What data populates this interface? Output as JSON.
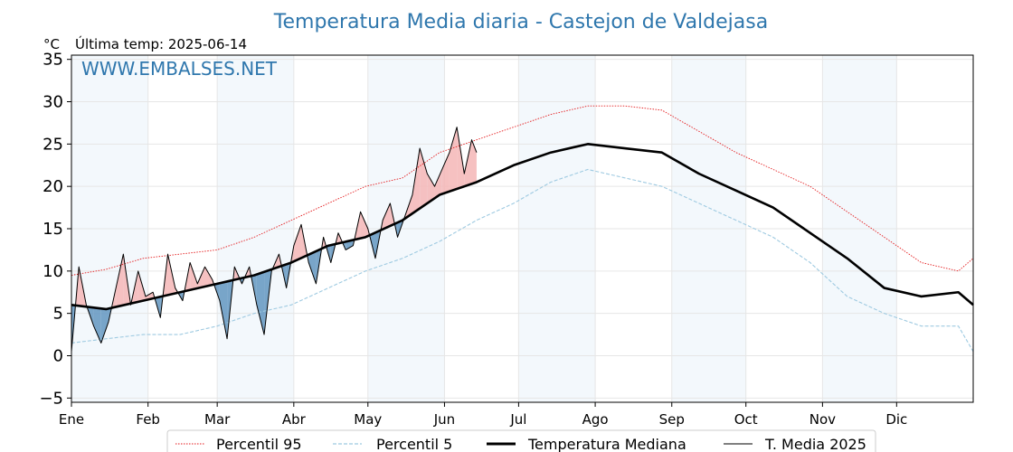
{
  "chart_data": {
    "type": "line",
    "title": "Temperatura Media diaria - Castejon de Valdejasa",
    "unit_label": "°C",
    "last_temp_label": "Última temp: 2025-06-14",
    "watermark": "WWW.EMBALSES.NET",
    "ylim": [
      -5.5,
      35.5
    ],
    "yticks": [
      -5,
      0,
      5,
      10,
      15,
      20,
      25,
      30,
      35
    ],
    "ytick_labels": [
      "−5",
      "0",
      "5",
      "10",
      "15",
      "20",
      "25",
      "30",
      "35"
    ],
    "xlim": [
      1,
      366
    ],
    "months": [
      {
        "label": "Ene",
        "day": 1
      },
      {
        "label": "Feb",
        "day": 32
      },
      {
        "label": "Mar",
        "day": 60
      },
      {
        "label": "Abr",
        "day": 91
      },
      {
        "label": "May",
        "day": 121
      },
      {
        "label": "Jun",
        "day": 152
      },
      {
        "label": "Jul",
        "day": 182
      },
      {
        "label": "Ago",
        "day": 213
      },
      {
        "label": "Sep",
        "day": 244
      },
      {
        "label": "Oct",
        "day": 274
      },
      {
        "label": "Nov",
        "day": 305
      },
      {
        "label": "Dic",
        "day": 335
      }
    ],
    "grid": true,
    "legend_position": "bottom",
    "series": [
      {
        "name": "Percentil 95",
        "color": "#e41a1c",
        "style": "dotted",
        "x": [
          1,
          15,
          30,
          45,
          60,
          75,
          90,
          105,
          120,
          135,
          150,
          165,
          180,
          195,
          210,
          225,
          240,
          255,
          270,
          285,
          300,
          315,
          330,
          345,
          360,
          366
        ],
        "y": [
          9.5,
          10.2,
          11.5,
          12.0,
          12.5,
          14.0,
          16.0,
          18.0,
          20.0,
          21.0,
          24.0,
          25.5,
          27.0,
          28.5,
          29.5,
          29.5,
          29.0,
          26.5,
          24.0,
          22.0,
          20.0,
          17.0,
          14.0,
          11.0,
          10.0,
          11.5
        ]
      },
      {
        "name": "Percentil 5",
        "color": "#9ecae1",
        "style": "dashed",
        "x": [
          1,
          15,
          30,
          45,
          60,
          75,
          90,
          105,
          120,
          135,
          150,
          165,
          180,
          195,
          210,
          225,
          240,
          255,
          270,
          285,
          300,
          315,
          330,
          345,
          360,
          366
        ],
        "y": [
          1.5,
          2.0,
          2.5,
          2.5,
          3.5,
          5.0,
          6.0,
          8.0,
          10.0,
          11.5,
          13.5,
          16.0,
          18.0,
          20.5,
          22.0,
          21.0,
          20.0,
          18.0,
          16.0,
          14.0,
          11.0,
          7.0,
          5.0,
          3.5,
          3.5,
          0.5
        ]
      },
      {
        "name": "Temperatura Mediana",
        "color": "#000000",
        "style": "solid-thick",
        "x": [
          1,
          15,
          30,
          45,
          60,
          75,
          90,
          105,
          120,
          135,
          150,
          165,
          180,
          195,
          210,
          225,
          240,
          255,
          270,
          285,
          300,
          315,
          330,
          345,
          360,
          366
        ],
        "y": [
          6.0,
          5.5,
          6.5,
          7.5,
          8.5,
          9.5,
          11.0,
          13.0,
          14.0,
          16.0,
          19.0,
          20.5,
          22.5,
          24.0,
          25.0,
          24.5,
          24.0,
          21.5,
          19.5,
          17.5,
          14.5,
          11.5,
          8.0,
          7.0,
          7.5,
          6.0
        ]
      },
      {
        "name": "T. Media 2025",
        "color": "#000000",
        "style": "solid-thin",
        "x": [
          1,
          4,
          7,
          10,
          13,
          16,
          19,
          22,
          25,
          28,
          31,
          34,
          37,
          40,
          43,
          46,
          49,
          52,
          55,
          58,
          61,
          64,
          67,
          70,
          73,
          76,
          79,
          82,
          85,
          88,
          91,
          94,
          97,
          100,
          103,
          106,
          109,
          112,
          115,
          118,
          121,
          124,
          127,
          130,
          133,
          136,
          139,
          142,
          145,
          148,
          151,
          154,
          157,
          160,
          163,
          165
        ],
        "y": [
          0.5,
          10.5,
          6.0,
          3.5,
          1.5,
          4.0,
          8.0,
          12.0,
          6.0,
          10.0,
          7.0,
          7.5,
          4.5,
          12.0,
          8.0,
          6.5,
          11.0,
          8.5,
          10.5,
          9.0,
          6.5,
          2.0,
          10.5,
          8.5,
          10.5,
          6.0,
          2.5,
          10.0,
          12.0,
          8.0,
          13.0,
          15.5,
          11.0,
          8.5,
          14.0,
          11.0,
          14.5,
          12.5,
          13.0,
          17.0,
          15.0,
          11.5,
          16.0,
          18.0,
          14.0,
          16.5,
          19.0,
          24.5,
          21.5,
          20.0,
          22.0,
          24.0,
          27.0,
          21.5,
          25.5,
          24.0
        ]
      }
    ]
  }
}
